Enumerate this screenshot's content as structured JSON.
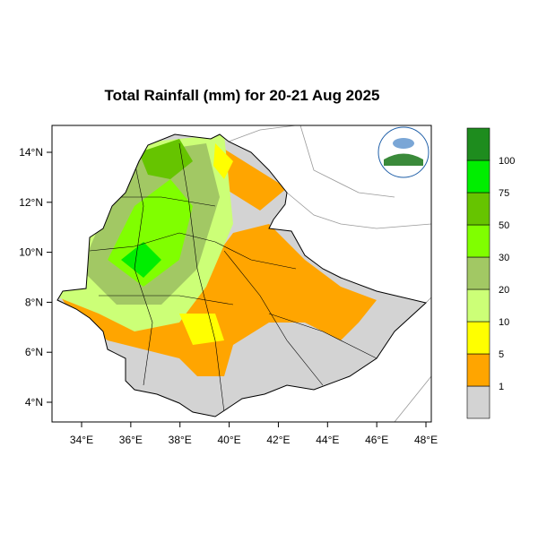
{
  "title": "Total Rainfall (mm) for 20-21 Aug 2025",
  "map": {
    "lat_ticks": [
      {
        "value": 4,
        "label": "4°N"
      },
      {
        "value": 6,
        "label": "6°N"
      },
      {
        "value": 8,
        "label": "8°N"
      },
      {
        "value": 10,
        "label": "10°N"
      },
      {
        "value": 12,
        "label": "12°N"
      },
      {
        "value": 14,
        "label": "14°N"
      }
    ],
    "lon_ticks": [
      {
        "value": 34,
        "label": "34°E"
      },
      {
        "value": 36,
        "label": "36°E"
      },
      {
        "value": 38,
        "label": "38°E"
      },
      {
        "value": 40,
        "label": "40°E"
      },
      {
        "value": 42,
        "label": "42°E"
      },
      {
        "value": 44,
        "label": "44°E"
      },
      {
        "value": 46,
        "label": "46°E"
      },
      {
        "value": 48,
        "label": "48°E"
      }
    ]
  },
  "legend": {
    "colors": [
      "#d3d3d3",
      "#ffa500",
      "#ffff00",
      "#ccff77",
      "#a2c864",
      "#80ff00",
      "#66c400",
      "#00ee00",
      "#1e8c1e"
    ],
    "labels": [
      "1",
      "5",
      "10",
      "20",
      "30",
      "50",
      "75",
      "100"
    ]
  }
}
